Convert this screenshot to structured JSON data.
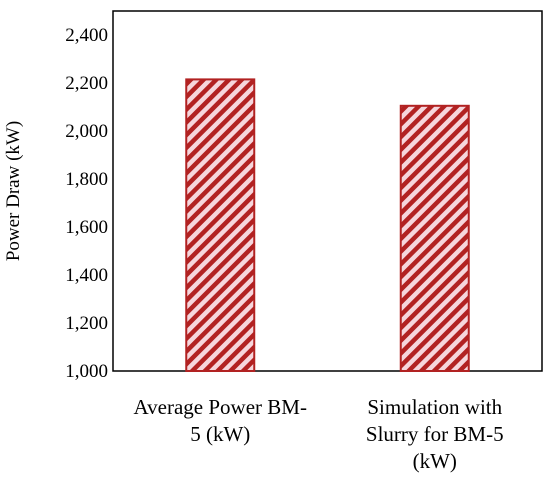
{
  "chart_data": {
    "type": "bar",
    "categories": [
      [
        "Average Power BM-",
        "5 (kW)"
      ],
      [
        "Simulation with",
        "Slurry for BM-5",
        "(kW)"
      ]
    ],
    "values": [
      2215,
      2105
    ],
    "title": "",
    "xlabel": "",
    "ylabel": "Power Draw (kW)",
    "ylim": [
      1000,
      2500
    ],
    "yticks": [
      "1,000",
      "1,200",
      "1,400",
      "1,600",
      "1,800",
      "2,000",
      "2,200",
      "2,400"
    ],
    "ytick_values": [
      1000,
      1200,
      1400,
      1600,
      1800,
      2000,
      2200,
      2400
    ],
    "grid": false,
    "bar_fill": "hatched",
    "bar_color": "#b22222",
    "bar_tint": "#f6d6dc"
  }
}
